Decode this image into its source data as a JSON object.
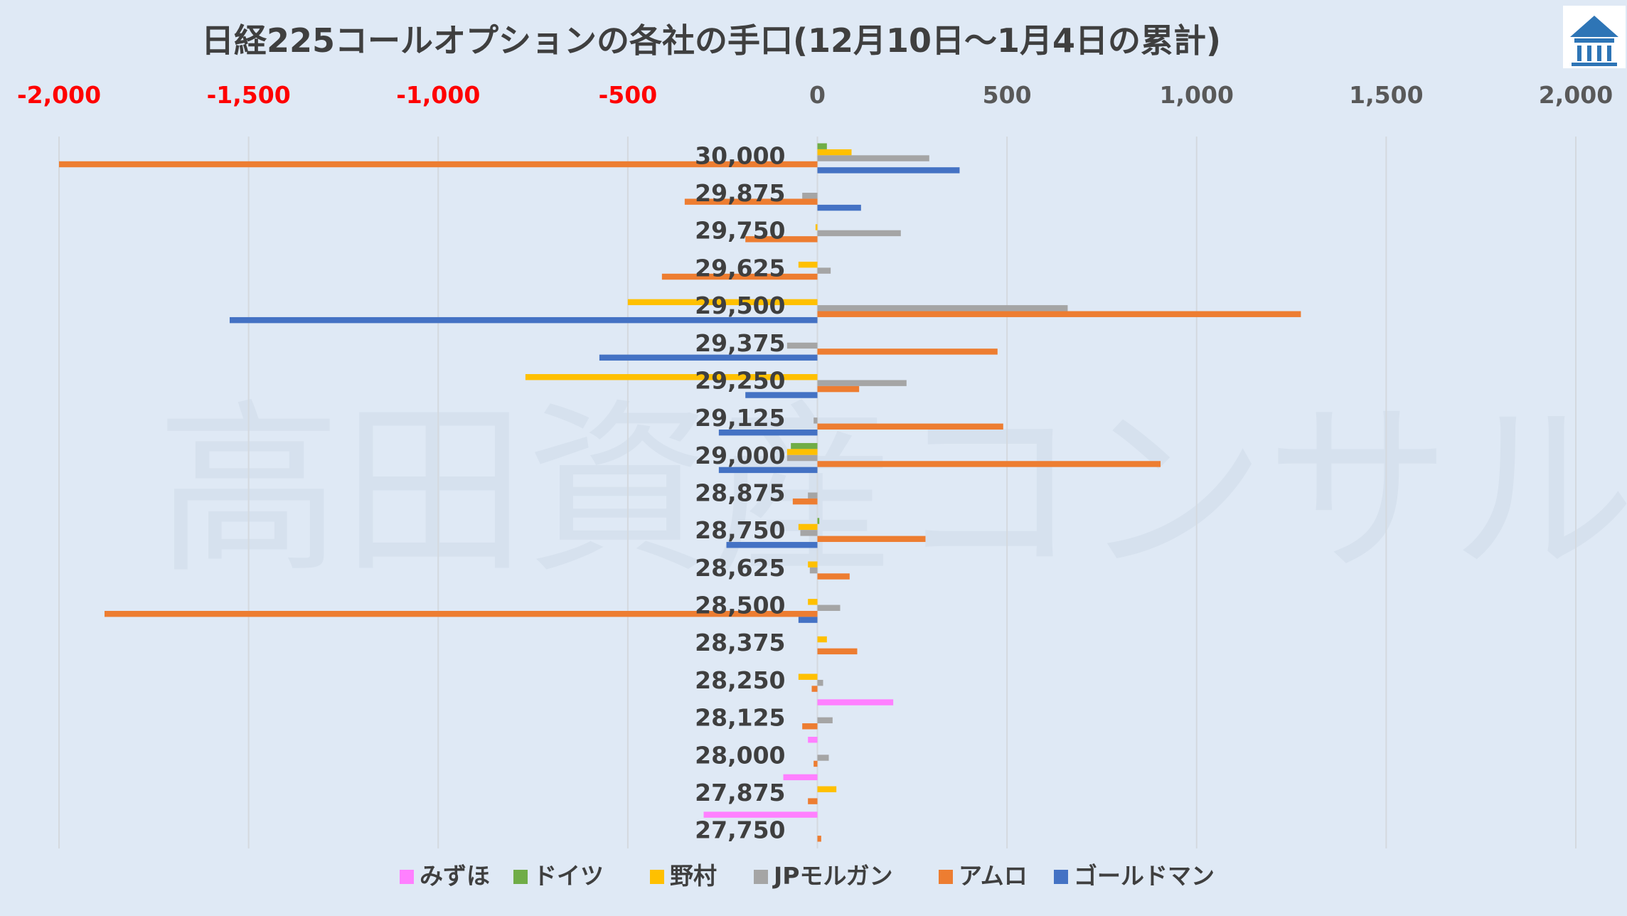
{
  "chart_data": {
    "type": "bar",
    "orientation": "horizontal",
    "title": "日経225コールオプションの各社の手口(12月10日～1月4日の累計)",
    "watermark": "高田資産コンサル",
    "xlim": [
      -2000,
      2000
    ],
    "xticks": [
      -2000,
      -1500,
      -1000,
      -500,
      0,
      500,
      1000,
      1500,
      2000
    ],
    "xtick_labels": [
      "-2,000",
      "-1,500",
      "-1,000",
      "-500",
      "0",
      "500",
      "1,000",
      "1,500",
      "2,000"
    ],
    "negative_tick_color": "#ff0000",
    "positive_tick_color": "#595959",
    "grid": "vertical",
    "legend_position": "bottom",
    "categories": [
      "30,000",
      "29,875",
      "29,750",
      "29,625",
      "29,500",
      "29,375",
      "29,250",
      "29,125",
      "29,000",
      "28,875",
      "28,750",
      "28,625",
      "28,500",
      "28,375",
      "28,250",
      "28,125",
      "28,000",
      "27,875",
      "27,750"
    ],
    "series": [
      {
        "name": "みずほ",
        "color": "#ff80ff",
        "values": [
          0,
          0,
          0,
          0,
          0,
          0,
          0,
          0,
          0,
          0,
          0,
          0,
          0,
          0,
          0,
          200,
          -25,
          -90,
          -300
        ]
      },
      {
        "name": "ドイツ",
        "color": "#70ad47",
        "values": [
          25,
          0,
          0,
          0,
          0,
          0,
          0,
          0,
          -70,
          0,
          5,
          0,
          0,
          0,
          0,
          0,
          0,
          0,
          0
        ]
      },
      {
        "name": "野村",
        "color": "#ffc000",
        "values": [
          90,
          0,
          -5,
          -50,
          -500,
          0,
          -770,
          0,
          -80,
          0,
          -50,
          -25,
          -25,
          25,
          -50,
          0,
          0,
          50,
          0
        ]
      },
      {
        "name": "JPモルガン",
        "color": "#a5a5a5",
        "values": [
          295,
          -40,
          220,
          35,
          660,
          -80,
          235,
          -10,
          -80,
          -25,
          -45,
          -20,
          60,
          0,
          15,
          40,
          30,
          0,
          0
        ]
      },
      {
        "name": "アムロ",
        "color": "#ed7d31",
        "values": [
          -2000,
          -350,
          -190,
          -410,
          1275,
          475,
          110,
          490,
          905,
          -65,
          285,
          85,
          -1880,
          105,
          -15,
          -40,
          -10,
          -25,
          10
        ]
      },
      {
        "name": "ゴールドマン",
        "color": "#4472c4",
        "values": [
          375,
          115,
          0,
          0,
          -1550,
          -575,
          -190,
          -260,
          -260,
          0,
          -240,
          0,
          -50,
          0,
          0,
          0,
          0,
          0,
          0
        ]
      }
    ],
    "logo": "building-icon"
  }
}
